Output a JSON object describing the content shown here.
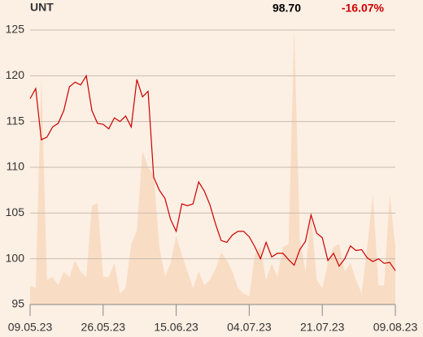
{
  "header": {
    "symbol": "UNT",
    "price": "98.70",
    "change": "-16.07%"
  },
  "chart_data": {
    "type": "line",
    "x": [
      0,
      1,
      2,
      3,
      4,
      5,
      6,
      7,
      8,
      9,
      10,
      11,
      12,
      13,
      14,
      15,
      16,
      17,
      18,
      19,
      20,
      21,
      22,
      23,
      24,
      25,
      26,
      27,
      28,
      29,
      30,
      31,
      32,
      33,
      34,
      35,
      36,
      37,
      38,
      39,
      40,
      41,
      42,
      43,
      44,
      45,
      46,
      47,
      48,
      49,
      50,
      51,
      52,
      53,
      54,
      55,
      56,
      57,
      58,
      59,
      60,
      61,
      62,
      63,
      64,
      65
    ],
    "series": [
      {
        "color": "#cc0000",
        "values": [
          117.5,
          118.6,
          113,
          113.3,
          114.4,
          114.8,
          116.2,
          118.8,
          119.3,
          119,
          120,
          116.2,
          114.8,
          114.7,
          114.2,
          115.4,
          115,
          115.6,
          114.4,
          119.6,
          117.7,
          118.3,
          108.9,
          107.5,
          106.6,
          104.3,
          103,
          106,
          105.8,
          106,
          108.4,
          107.4,
          105.9,
          103.8,
          102,
          101.8,
          102.6,
          103,
          103,
          102.4,
          101.3,
          100,
          101.8,
          100.2,
          100.6,
          100.6,
          99.9,
          99.3,
          101,
          101.9,
          104.8,
          102.8,
          102.3,
          99.8,
          100.6,
          99.2,
          100,
          101.4,
          100.9,
          101,
          100.1,
          99.7,
          100,
          99.5,
          99.6,
          98.7
        ]
      },
      {
        "color": "#f9dcc4",
        "axis": "y2",
        "values": [
          7,
          6,
          83,
          9,
          10,
          7,
          12,
          10,
          16,
          12,
          10,
          36,
          37,
          10,
          10,
          15,
          4,
          6,
          22,
          27,
          56,
          50,
          47,
          21,
          10,
          15,
          25,
          18,
          12,
          6,
          12,
          7,
          9,
          13,
          19,
          16,
          12,
          6,
          4,
          3,
          18,
          21,
          9,
          15,
          10,
          21,
          22,
          100,
          24,
          12,
          33,
          9,
          6,
          15,
          21,
          22,
          12,
          15,
          9,
          4,
          21,
          40,
          7,
          7,
          40,
          21
        ]
      }
    ],
    "xlim": [
      0,
      65
    ],
    "xticks": [
      {
        "value": 0,
        "label": "09.05.23"
      },
      {
        "value": 13,
        "label": "26.05.23"
      },
      {
        "value": 26,
        "label": "15.06.23"
      },
      {
        "value": 39,
        "label": "04.07.23"
      },
      {
        "value": 52,
        "label": "21.07.23"
      },
      {
        "value": 65,
        "label": "09.08.23"
      }
    ],
    "ylim": [
      95,
      125
    ],
    "yticks": [
      95,
      100,
      105,
      110,
      115,
      120,
      125
    ],
    "y2lim": [
      0,
      100
    ],
    "grid": true
  }
}
